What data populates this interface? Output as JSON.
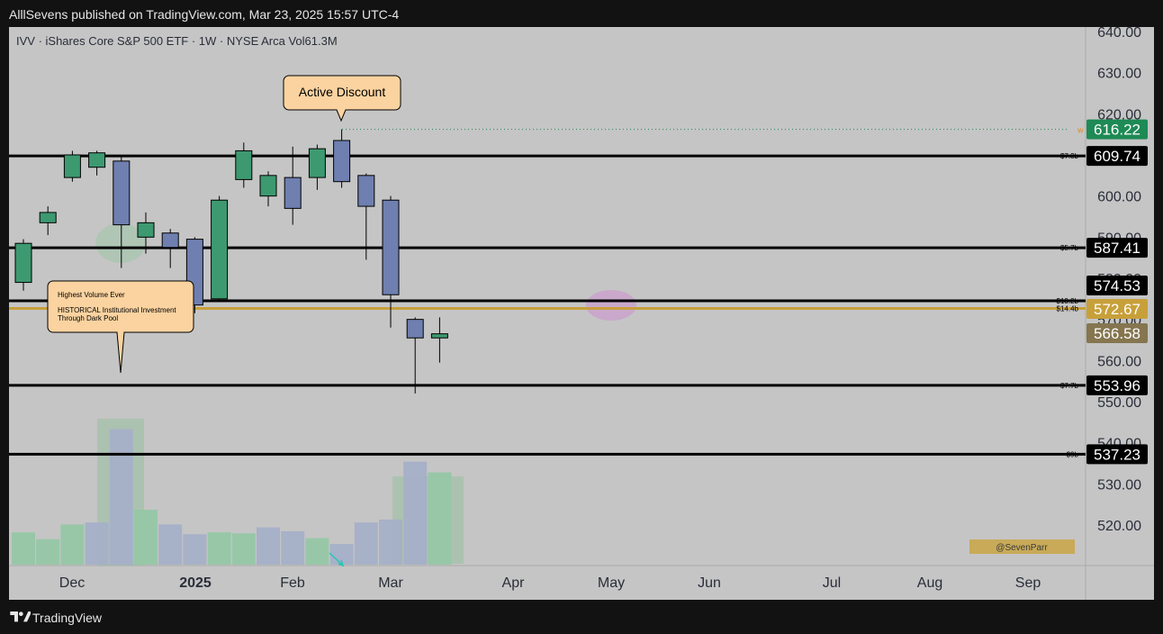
{
  "header": {
    "published": "AlllSevens published on TradingView.com, Mar 23, 2025 15:57 UTC-4"
  },
  "footer": {
    "brand": "TradingView",
    "logo_icon": "tradingview-logo-icon"
  },
  "colors": {
    "background": "#c5c5c5",
    "up_candle": "#3d9970",
    "down_candle": "#6e7fb0",
    "level_line": "#000000",
    "gold_line": "#c8a03a",
    "current_price": "#1e8a55",
    "callout": "#fbd3a0"
  },
  "chart_data": {
    "type": "candlestick",
    "symbol_line": "IVV · iShares Core S&P 500 ETF · 1W · NYSE Arca  Vol61.3M",
    "y_ticks": [
      "640.00",
      "630.00",
      "620.00",
      "610.00",
      "600.00",
      "590.00",
      "580.00",
      "570.00",
      "560.00",
      "550.00",
      "540.00",
      "530.00",
      "520.00"
    ],
    "x_ticks": [
      "Dec",
      "2025",
      "Feb",
      "Mar",
      "Apr",
      "May",
      "Jun",
      "Jul",
      "Aug",
      "Sep"
    ],
    "ylim": [
      509,
      643
    ],
    "candles": [
      {
        "open": 579.0,
        "close": 588.5,
        "high": 589.5,
        "low": 577.0
      },
      {
        "open": 593.5,
        "close": 596.0,
        "high": 597.5,
        "low": 590.5
      },
      {
        "open": 604.5,
        "close": 610.0,
        "high": 611.0,
        "low": 603.5
      },
      {
        "open": 607.0,
        "close": 610.5,
        "high": 611.0,
        "low": 605.0
      },
      {
        "open": 608.5,
        "close": 593.0,
        "high": 609.5,
        "low": 582.5
      },
      {
        "open": 590.0,
        "close": 593.5,
        "high": 596.0,
        "low": 586.0
      },
      {
        "open": 591.0,
        "close": 587.5,
        "high": 592.0,
        "low": 582.5
      },
      {
        "open": 589.5,
        "close": 573.5,
        "high": 590.0,
        "low": 571.5
      },
      {
        "open": 575.0,
        "close": 599.0,
        "high": 600.0,
        "low": 574.5
      },
      {
        "open": 604.0,
        "close": 611.0,
        "high": 613.0,
        "low": 602.0
      },
      {
        "open": 600.0,
        "close": 605.0,
        "high": 606.0,
        "low": 597.5
      },
      {
        "open": 604.5,
        "close": 597.0,
        "high": 612.0,
        "low": 593.0
      },
      {
        "open": 604.5,
        "close": 611.5,
        "high": 612.5,
        "low": 601.5
      },
      {
        "open": 613.5,
        "close": 603.5,
        "high": 616.2,
        "low": 602.0
      },
      {
        "open": 605.0,
        "close": 597.5,
        "high": 605.5,
        "low": 584.5
      },
      {
        "open": 599.0,
        "close": 576.0,
        "high": 600.0,
        "low": 568.0
      },
      {
        "open": 570.0,
        "close": 565.5,
        "high": 570.5,
        "low": 552.0
      },
      {
        "open": 565.5,
        "close": 566.5,
        "high": 570.5,
        "low": 559.5
      }
    ],
    "volume": [
      {
        "value": 0.33,
        "up": true
      },
      {
        "value": 0.26,
        "up": true
      },
      {
        "value": 0.41,
        "up": true
      },
      {
        "value": 0.43,
        "up": false
      },
      {
        "value": 1.38,
        "up": false
      },
      {
        "value": 0.56,
        "up": true
      },
      {
        "value": 0.41,
        "up": false
      },
      {
        "value": 0.31,
        "up": false
      },
      {
        "value": 0.33,
        "up": true
      },
      {
        "value": 0.32,
        "up": true
      },
      {
        "value": 0.38,
        "up": false
      },
      {
        "value": 0.34,
        "up": false
      },
      {
        "value": 0.27,
        "up": true
      },
      {
        "value": 0.21,
        "up": false
      },
      {
        "value": 0.43,
        "up": false
      },
      {
        "value": 0.46,
        "up": false
      },
      {
        "value": 1.05,
        "up": false
      },
      {
        "value": 0.94,
        "up": true
      }
    ],
    "levels": [
      {
        "price": 609.74,
        "tag": "$7.3b",
        "label": "609.74",
        "color": "#000000"
      },
      {
        "price": 587.41,
        "tag": "$5.7b",
        "label": "587.41",
        "color": "#000000"
      },
      {
        "price": 574.53,
        "tag": "$13.2b",
        "label": "574.53",
        "color": "#000000"
      },
      {
        "price": 572.67,
        "tag": "$14.4b",
        "label": "572.67",
        "color": "#c8a03a"
      },
      {
        "price": 553.96,
        "tag": "$7.7b",
        "label": "553.96",
        "color": "#000000"
      },
      {
        "price": 537.23,
        "tag": "$9b",
        "label": "537.23",
        "color": "#000000"
      }
    ],
    "current_price": {
      "price": 616.22,
      "label": "616.22"
    },
    "extra_label": {
      "price": 566.58,
      "label": "566.58"
    },
    "annotations": {
      "active_discount": "Active Discount",
      "callout_lines": [
        "Highest Volume Ever",
        "HISTORICAL Institutional Investment",
        "Through Dark Pool"
      ],
      "watermark": "@SevenParr",
      "w_marker": "w"
    }
  }
}
